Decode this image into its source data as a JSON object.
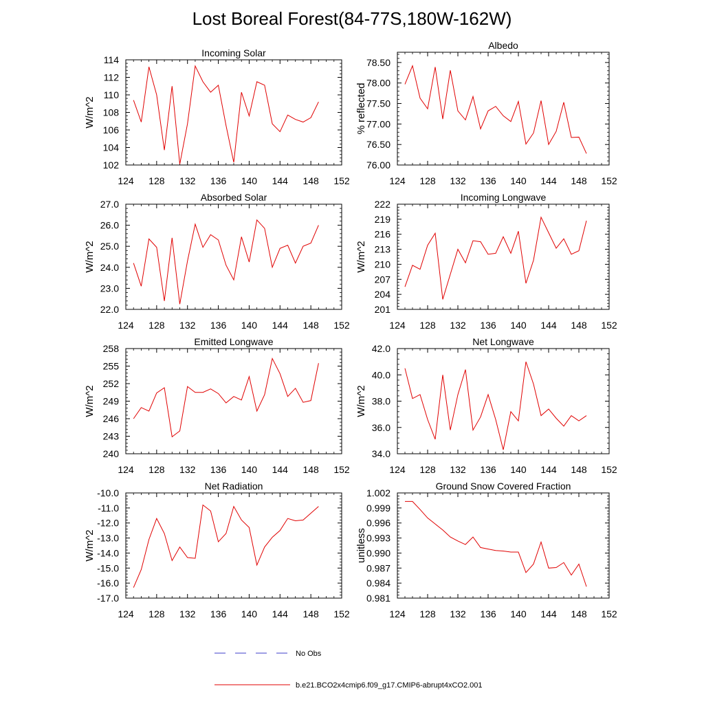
{
  "title": "Lost Boreal Forest(84-77S,180W-162W)",
  "legend": {
    "entries": [
      {
        "label": "No Obs",
        "style": "dashed",
        "color": "#3c3cc8"
      },
      {
        "label": "b.e21.BCO2x4cmip6.f09_g17.CMIP6-abrupt4xCO2.001",
        "style": "solid",
        "color": "#e00000"
      }
    ]
  },
  "chart_data": [
    {
      "type": "line",
      "title": "Incoming Solar",
      "ylabel": "W/m^2",
      "xlabel": "",
      "xlim": [
        124,
        152
      ],
      "xticks": [
        124,
        128,
        132,
        136,
        140,
        144,
        148,
        152
      ],
      "ylim": [
        102,
        114
      ],
      "yticks": [
        "102",
        "104",
        "106",
        "108",
        "110",
        "112",
        "114"
      ],
      "ytick_values": [
        102,
        104,
        106,
        108,
        110,
        112,
        114
      ],
      "x": [
        125,
        126,
        127,
        128,
        129,
        130,
        131,
        132,
        133,
        134,
        135,
        136,
        137,
        138,
        139,
        140,
        141,
        142,
        143,
        144,
        145,
        146,
        147,
        148,
        149
      ],
      "series": [
        {
          "name": "b.e21.BCO2x4cmip6.f09_g17.CMIP6-abrupt4xCO2.001",
          "color": "#e00000",
          "values": [
            109.4,
            106.9,
            113.2,
            110.0,
            103.7,
            111.0,
            102.1,
            106.7,
            113.3,
            111.5,
            110.3,
            111.1,
            106.5,
            102.3,
            110.3,
            107.6,
            111.5,
            111.1,
            106.7,
            105.8,
            107.7,
            107.2,
            106.9,
            107.4,
            109.2
          ]
        }
      ]
    },
    {
      "type": "line",
      "title": "Albedo",
      "ylabel": "% reflected",
      "xlabel": "",
      "xlim": [
        124,
        152
      ],
      "xticks": [
        124,
        128,
        132,
        136,
        140,
        144,
        148,
        152
      ],
      "ylim": [
        76.0,
        78.75
      ],
      "yticks": [
        "76.00",
        "76.50",
        "77.00",
        "77.50",
        "78.00",
        "78.50"
      ],
      "ytick_values": [
        76.0,
        76.5,
        77.0,
        77.5,
        78.0,
        78.5
      ],
      "x": [
        125,
        126,
        127,
        128,
        129,
        130,
        131,
        132,
        133,
        134,
        135,
        136,
        137,
        138,
        139,
        140,
        141,
        142,
        143,
        144,
        145,
        146,
        147,
        148,
        149
      ],
      "series": [
        {
          "name": "b.e21.BCO2x4cmip6.f09_g17.CMIP6-abrupt4xCO2.001",
          "color": "#e00000",
          "values": [
            77.97,
            78.42,
            77.63,
            77.37,
            78.39,
            77.12,
            78.31,
            77.32,
            77.1,
            77.67,
            76.88,
            77.32,
            77.43,
            77.2,
            77.06,
            77.55,
            76.51,
            76.78,
            77.57,
            76.5,
            76.82,
            77.53,
            76.67,
            76.68,
            76.28
          ]
        }
      ]
    },
    {
      "type": "line",
      "title": "Absorbed Solar",
      "ylabel": "W/m^2",
      "xlabel": "",
      "xlim": [
        124,
        152
      ],
      "xticks": [
        124,
        128,
        132,
        136,
        140,
        144,
        148,
        152
      ],
      "ylim": [
        22.0,
        27.0
      ],
      "yticks": [
        "22.0",
        "23.0",
        "24.0",
        "25.0",
        "26.0",
        "27.0"
      ],
      "ytick_values": [
        22,
        23,
        24,
        25,
        26,
        27
      ],
      "x": [
        125,
        126,
        127,
        128,
        129,
        130,
        131,
        132,
        133,
        134,
        135,
        136,
        137,
        138,
        139,
        140,
        141,
        142,
        143,
        144,
        145,
        146,
        147,
        148,
        149
      ],
      "series": [
        {
          "name": "b.e21.BCO2x4cmip6.f09_g17.CMIP6-abrupt4xCO2.001",
          "color": "#e00000",
          "values": [
            24.2,
            23.1,
            25.35,
            24.95,
            22.4,
            25.4,
            22.25,
            24.3,
            26.05,
            24.95,
            25.55,
            25.3,
            24.1,
            23.4,
            25.45,
            24.25,
            26.25,
            25.85,
            24.0,
            24.9,
            25.05,
            24.2,
            25.0,
            25.15,
            26.0
          ]
        }
      ]
    },
    {
      "type": "line",
      "title": "Incoming Longwave",
      "ylabel": "W/m^2",
      "xlabel": "",
      "xlim": [
        124,
        152
      ],
      "xticks": [
        124,
        128,
        132,
        136,
        140,
        144,
        148,
        152
      ],
      "ylim": [
        201,
        222
      ],
      "yticks": [
        "201",
        "204",
        "207",
        "210",
        "213",
        "216",
        "219",
        "222"
      ],
      "ytick_values": [
        201,
        204,
        207,
        210,
        213,
        216,
        219,
        222
      ],
      "x": [
        125,
        126,
        127,
        128,
        129,
        130,
        131,
        132,
        133,
        134,
        135,
        136,
        137,
        138,
        139,
        140,
        141,
        142,
        143,
        144,
        145,
        146,
        147,
        148,
        149
      ],
      "series": [
        {
          "name": "b.e21.BCO2x4cmip6.f09_g17.CMIP6-abrupt4xCO2.001",
          "color": "#e00000",
          "values": [
            205.5,
            209.8,
            209.0,
            213.8,
            216.2,
            203.0,
            208.0,
            213.0,
            210.3,
            214.7,
            214.5,
            212.0,
            212.2,
            215.5,
            212.2,
            216.6,
            206.2,
            210.8,
            219.4,
            216.3,
            213.2,
            215.1,
            212.0,
            212.7,
            218.7
          ]
        }
      ]
    },
    {
      "type": "line",
      "title": "Emitted Longwave",
      "ylabel": "W/m^2",
      "xlabel": "",
      "xlim": [
        124,
        152
      ],
      "xticks": [
        124,
        128,
        132,
        136,
        140,
        144,
        148,
        152
      ],
      "ylim": [
        240,
        258
      ],
      "yticks": [
        "240",
        "243",
        "246",
        "249",
        "252",
        "255",
        "258"
      ],
      "ytick_values": [
        240,
        243,
        246,
        249,
        252,
        255,
        258
      ],
      "x": [
        125,
        126,
        127,
        128,
        129,
        130,
        131,
        132,
        133,
        134,
        135,
        136,
        137,
        138,
        139,
        140,
        141,
        142,
        143,
        144,
        145,
        146,
        147,
        148,
        149
      ],
      "series": [
        {
          "name": "b.e21.BCO2x4cmip6.f09_g17.CMIP6-abrupt4xCO2.001",
          "color": "#e00000",
          "values": [
            246.0,
            247.9,
            247.3,
            250.4,
            251.3,
            242.9,
            243.9,
            251.5,
            250.5,
            250.5,
            251.1,
            250.3,
            248.7,
            249.8,
            249.2,
            253.2,
            247.3,
            250.1,
            256.3,
            253.7,
            249.8,
            251.2,
            248.8,
            249.1,
            255.5
          ]
        }
      ]
    },
    {
      "type": "line",
      "title": "Net Longwave",
      "ylabel": "W/m^2",
      "xlabel": "",
      "xlim": [
        124,
        152
      ],
      "xticks": [
        124,
        128,
        132,
        136,
        140,
        144,
        148,
        152
      ],
      "ylim": [
        34.0,
        42.0
      ],
      "yticks": [
        "34.0",
        "36.0",
        "38.0",
        "40.0",
        "42.0"
      ],
      "ytick_values": [
        34,
        36,
        38,
        40,
        42
      ],
      "x": [
        125,
        126,
        127,
        128,
        129,
        130,
        131,
        132,
        133,
        134,
        135,
        136,
        137,
        138,
        139,
        140,
        141,
        142,
        143,
        144,
        145,
        146,
        147,
        148,
        149
      ],
      "series": [
        {
          "name": "b.e21.BCO2x4cmip6.f09_g17.CMIP6-abrupt4xCO2.001",
          "color": "#e00000",
          "values": [
            40.5,
            38.2,
            38.5,
            36.6,
            35.1,
            40.0,
            35.8,
            38.5,
            40.4,
            35.8,
            36.8,
            38.5,
            36.6,
            34.3,
            37.2,
            36.5,
            41.0,
            39.3,
            36.9,
            37.4,
            36.7,
            36.1,
            36.9,
            36.5,
            36.9
          ]
        }
      ]
    },
    {
      "type": "line",
      "title": "Net Radiation",
      "ylabel": "W/m^2",
      "xlabel": "",
      "xlim": [
        124,
        152
      ],
      "xticks": [
        124,
        128,
        132,
        136,
        140,
        144,
        148,
        152
      ],
      "ylim": [
        -17.0,
        -10.0
      ],
      "yticks": [
        "-17.0",
        "-16.0",
        "-15.0",
        "-14.0",
        "-13.0",
        "-12.0",
        "-11.0",
        "-10.0"
      ],
      "ytick_values": [
        -17,
        -16,
        -15,
        -14,
        -13,
        -12,
        -11,
        -10
      ],
      "x": [
        125,
        126,
        127,
        128,
        129,
        130,
        131,
        132,
        133,
        134,
        135,
        136,
        137,
        138,
        139,
        140,
        141,
        142,
        143,
        144,
        145,
        146,
        147,
        148,
        149
      ],
      "series": [
        {
          "name": "b.e21.BCO2x4cmip6.f09_g17.CMIP6-abrupt4xCO2.001",
          "color": "#e00000",
          "values": [
            -16.3,
            -15.1,
            -13.1,
            -11.7,
            -12.7,
            -14.5,
            -13.6,
            -14.3,
            -14.35,
            -10.8,
            -11.2,
            -13.25,
            -12.7,
            -10.9,
            -11.8,
            -12.3,
            -14.8,
            -13.6,
            -12.95,
            -12.5,
            -11.7,
            -11.85,
            -11.8,
            -11.35,
            -10.9
          ]
        }
      ]
    },
    {
      "type": "line",
      "title": "Ground Snow Covered Fraction",
      "ylabel": "unitless",
      "xlabel": "",
      "xlim": [
        124,
        152
      ],
      "xticks": [
        124,
        128,
        132,
        136,
        140,
        144,
        148,
        152
      ],
      "ylim": [
        0.981,
        1.002
      ],
      "yticks": [
        "0.981",
        "0.984",
        "0.987",
        "0.990",
        "0.993",
        "0.996",
        "0.999",
        "1.002"
      ],
      "ytick_values": [
        0.981,
        0.984,
        0.987,
        0.99,
        0.993,
        0.996,
        0.999,
        1.002
      ],
      "x": [
        125,
        126,
        127,
        128,
        129,
        130,
        131,
        132,
        133,
        134,
        135,
        136,
        137,
        138,
        139,
        140,
        141,
        142,
        143,
        144,
        145,
        146,
        147,
        148,
        149
      ],
      "series": [
        {
          "name": "b.e21.BCO2x4cmip6.f09_g17.CMIP6-abrupt4xCO2.001",
          "color": "#e00000",
          "values": [
            1.0003,
            1.0003,
            0.9987,
            0.997,
            0.9958,
            0.9946,
            0.9932,
            0.9924,
            0.9917,
            0.9932,
            0.9911,
            0.9908,
            0.9905,
            0.9904,
            0.9902,
            0.9902,
            0.9861,
            0.9878,
            0.9922,
            0.987,
            0.9871,
            0.9881,
            0.9856,
            0.9878,
            0.9833
          ]
        }
      ]
    }
  ]
}
